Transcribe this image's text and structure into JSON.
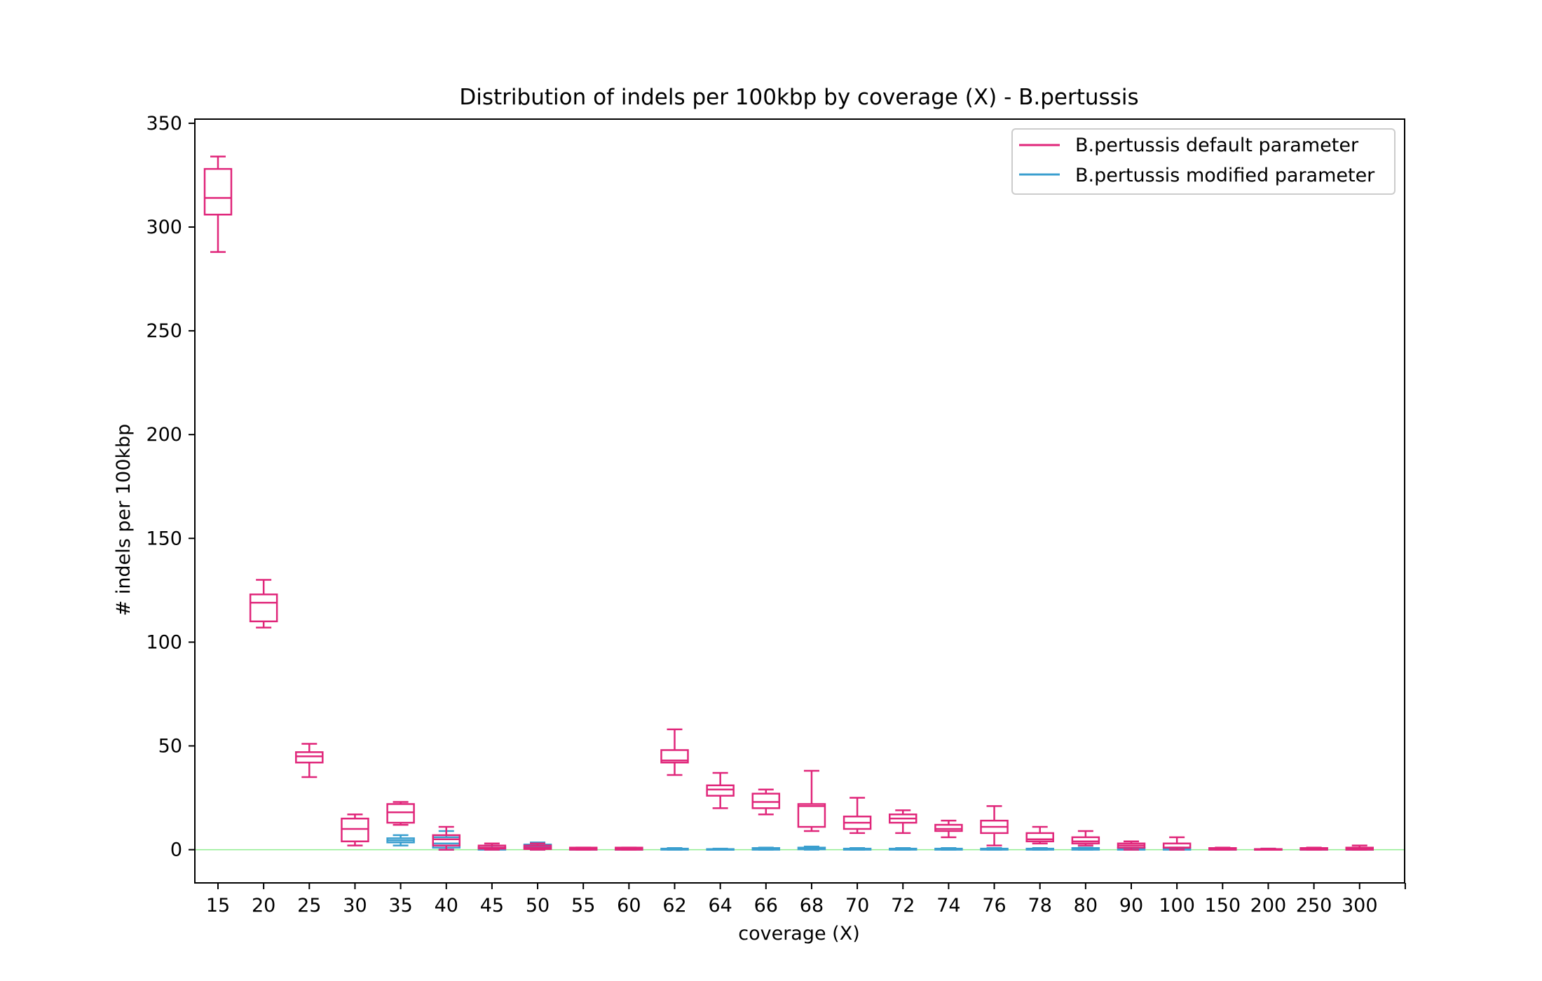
{
  "chart_data": {
    "type": "box",
    "title": "Distribution of indels per 100kbp by coverage (X) - B.pertussis",
    "xlabel": "coverage (X)",
    "ylabel": "# indels per 100kbp",
    "ylim": [
      -16,
      352
    ],
    "yticks": [
      0,
      50,
      100,
      150,
      200,
      250,
      300,
      350
    ],
    "categories": [
      "15",
      "20",
      "25",
      "30",
      "35",
      "40",
      "45",
      "50",
      "55",
      "60",
      "62",
      "64",
      "66",
      "68",
      "70",
      "72",
      "74",
      "76",
      "78",
      "80",
      "90",
      "100",
      "150",
      "200",
      "250",
      "300"
    ],
    "legend_position": "top-right",
    "reference_line": {
      "y": 0,
      "color": "#90ee90"
    },
    "colors": {
      "default": "#e0267a",
      "modified": "#3a9fcf"
    },
    "series": [
      {
        "name": "B.pertussis default parameter",
        "boxes": [
          {
            "min": 288,
            "q1": 306,
            "median": 314,
            "q3": 328,
            "max": 334
          },
          {
            "min": 107,
            "q1": 110,
            "median": 119,
            "q3": 123,
            "max": 130
          },
          {
            "min": 35,
            "q1": 42,
            "median": 45,
            "q3": 47,
            "max": 51
          },
          {
            "min": 2,
            "q1": 4,
            "median": 10,
            "q3": 15,
            "max": 17
          },
          {
            "min": 12,
            "q1": 13,
            "median": 18,
            "q3": 22,
            "max": 23
          },
          {
            "min": 0,
            "q1": 2,
            "median": 5,
            "q3": 7,
            "max": 11
          },
          {
            "min": 0,
            "q1": 0.5,
            "median": 1,
            "q3": 2,
            "max": 3
          },
          {
            "min": 0,
            "q1": 0.3,
            "median": 1,
            "q3": 2,
            "max": 3
          },
          {
            "min": 0,
            "q1": 0,
            "median": 0.5,
            "q3": 1,
            "max": 1
          },
          {
            "min": 0,
            "q1": 0,
            "median": 0.5,
            "q3": 1,
            "max": 1
          },
          {
            "min": 36,
            "q1": 42,
            "median": 43,
            "q3": 48,
            "max": 58
          },
          {
            "min": 20,
            "q1": 26,
            "median": 29,
            "q3": 31,
            "max": 37
          },
          {
            "min": 17,
            "q1": 20,
            "median": 23,
            "q3": 27,
            "max": 29
          },
          {
            "min": 9,
            "q1": 11,
            "median": 21,
            "q3": 22,
            "max": 38
          },
          {
            "min": 8,
            "q1": 10,
            "median": 13,
            "q3": 16,
            "max": 25
          },
          {
            "min": 8,
            "q1": 13,
            "median": 15,
            "q3": 17,
            "max": 19
          },
          {
            "min": 6,
            "q1": 9,
            "median": 10,
            "q3": 12,
            "max": 14
          },
          {
            "min": 2,
            "q1": 8,
            "median": 11,
            "q3": 14,
            "max": 21
          },
          {
            "min": 3,
            "q1": 4,
            "median": 5,
            "q3": 8,
            "max": 11
          },
          {
            "min": 2,
            "q1": 3,
            "median": 4,
            "q3": 6,
            "max": 9
          },
          {
            "min": 0,
            "q1": 1,
            "median": 2,
            "q3": 3,
            "max": 4
          },
          {
            "min": 0,
            "q1": 1,
            "median": 1,
            "q3": 3,
            "max": 6
          },
          {
            "min": 0,
            "q1": 0,
            "median": 0.3,
            "q3": 0.8,
            "max": 1
          },
          {
            "min": 0,
            "q1": 0,
            "median": 0,
            "q3": 0.3,
            "max": 0.5
          },
          {
            "min": 0,
            "q1": 0,
            "median": 0.3,
            "q3": 0.8,
            "max": 1
          },
          {
            "min": 0,
            "q1": 0,
            "median": 0.5,
            "q3": 1,
            "max": 2
          }
        ]
      },
      {
        "name": "B.pertussis modified parameter",
        "boxes": [
          null,
          null,
          null,
          null,
          {
            "min": 2,
            "q1": 3.5,
            "median": 4.5,
            "q3": 5.5,
            "max": 7
          },
          {
            "min": 0,
            "q1": 1,
            "median": 3,
            "q3": 6,
            "max": 9
          },
          {
            "min": 0,
            "q1": 0,
            "median": 0.5,
            "q3": 1,
            "max": 2
          },
          {
            "min": 0,
            "q1": 0.5,
            "median": 1.5,
            "q3": 2.5,
            "max": 3.5
          },
          {
            "min": 0,
            "q1": 0,
            "median": 0.2,
            "q3": 0.5,
            "max": 0.8
          },
          {
            "min": 0,
            "q1": 0,
            "median": 0.2,
            "q3": 0.5,
            "max": 0.8
          },
          {
            "min": 0,
            "q1": 0,
            "median": 0.2,
            "q3": 0.5,
            "max": 0.8
          },
          {
            "min": 0,
            "q1": 0,
            "median": 0,
            "q3": 0.3,
            "max": 0.5
          },
          {
            "min": 0,
            "q1": 0,
            "median": 0.3,
            "q3": 0.8,
            "max": 1
          },
          {
            "min": 0,
            "q1": 0.2,
            "median": 0.5,
            "q3": 1,
            "max": 1.5
          },
          {
            "min": 0,
            "q1": 0,
            "median": 0.2,
            "q3": 0.5,
            "max": 0.8
          },
          {
            "min": 0,
            "q1": 0,
            "median": 0.2,
            "q3": 0.5,
            "max": 0.8
          },
          {
            "min": 0,
            "q1": 0,
            "median": 0.2,
            "q3": 0.5,
            "max": 0.8
          },
          {
            "min": 0,
            "q1": 0,
            "median": 0.2,
            "q3": 0.5,
            "max": 0.8
          },
          {
            "min": 0,
            "q1": 0,
            "median": 0.2,
            "q3": 0.5,
            "max": 0.8
          },
          {
            "min": 0,
            "q1": 0,
            "median": 0.3,
            "q3": 0.8,
            "max": 1
          },
          {
            "min": 0,
            "q1": 0,
            "median": 0.3,
            "q3": 0.8,
            "max": 1
          },
          {
            "min": 0,
            "q1": 0,
            "median": 0.3,
            "q3": 0.8,
            "max": 1
          },
          {
            "min": 0,
            "q1": 0,
            "median": 0.2,
            "q3": 0.5,
            "max": 0.8
          },
          {
            "min": 0,
            "q1": 0,
            "median": 0,
            "q3": 0.3,
            "max": 0.5
          },
          {
            "min": 0,
            "q1": 0,
            "median": 0.2,
            "q3": 0.5,
            "max": 0.8
          },
          {
            "min": 0,
            "q1": 0,
            "median": 0.2,
            "q3": 0.5,
            "max": 0.8
          }
        ]
      }
    ]
  }
}
